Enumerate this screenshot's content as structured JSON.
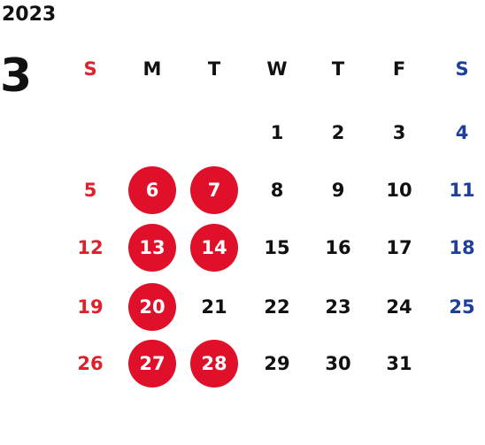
{
  "year": "2023",
  "month": "3",
  "colors": {
    "sunday": "#e0202a",
    "saturday": "#1e3f9a",
    "weekday": "#111111",
    "highlight": "#e0102a"
  },
  "weekdays": [
    "S",
    "M",
    "T",
    "W",
    "T",
    "F",
    "S"
  ],
  "weeks": [
    [
      "",
      "",
      "",
      "1",
      "2",
      "3",
      "4"
    ],
    [
      "5",
      "6",
      "7",
      "8",
      "9",
      "10",
      "11"
    ],
    [
      "12",
      "13",
      "14",
      "15",
      "16",
      "17",
      "18"
    ],
    [
      "19",
      "20",
      "21",
      "22",
      "23",
      "24",
      "25"
    ],
    [
      "26",
      "27",
      "28",
      "29",
      "30",
      "31",
      ""
    ]
  ],
  "highlighted_days": [
    "6",
    "7",
    "13",
    "14",
    "20",
    "27",
    "28"
  ]
}
